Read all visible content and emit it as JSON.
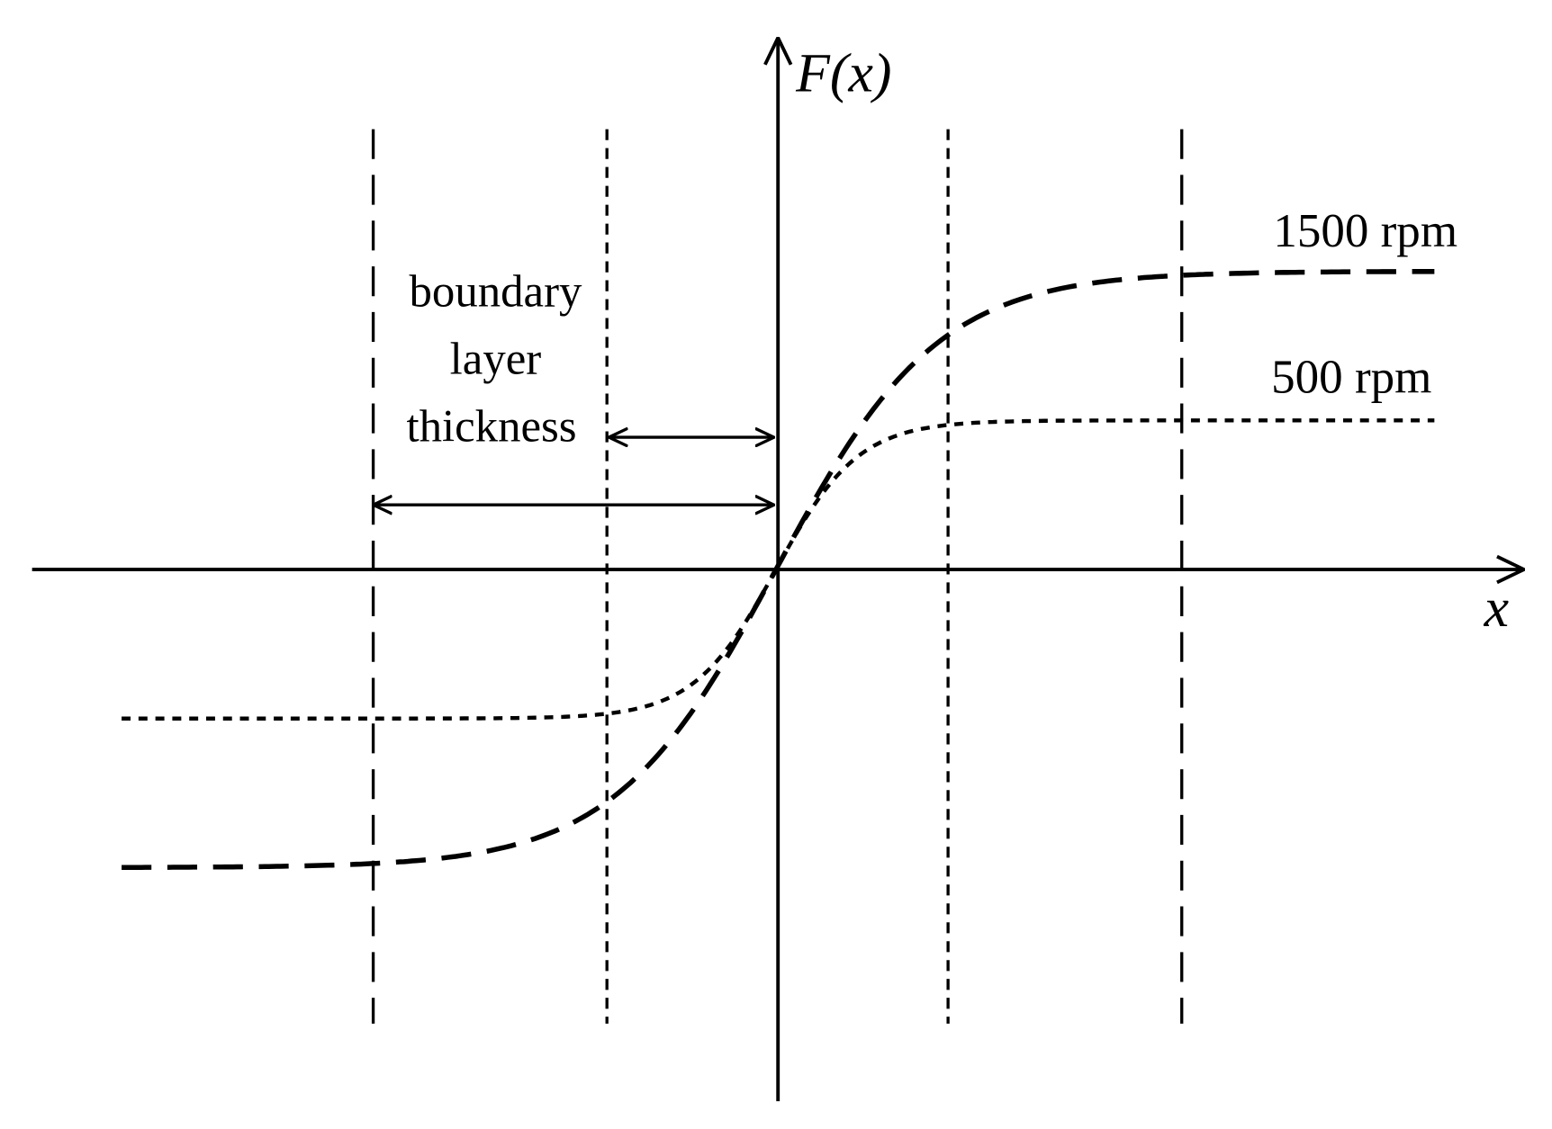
{
  "axes": {
    "y_label": "F(x)",
    "x_label": "x"
  },
  "curves": [
    {
      "label": "1500 rpm"
    },
    {
      "label": "500 rpm"
    }
  ],
  "annotation": {
    "lines": [
      "boundary",
      "layer",
      "thickness"
    ]
  }
}
